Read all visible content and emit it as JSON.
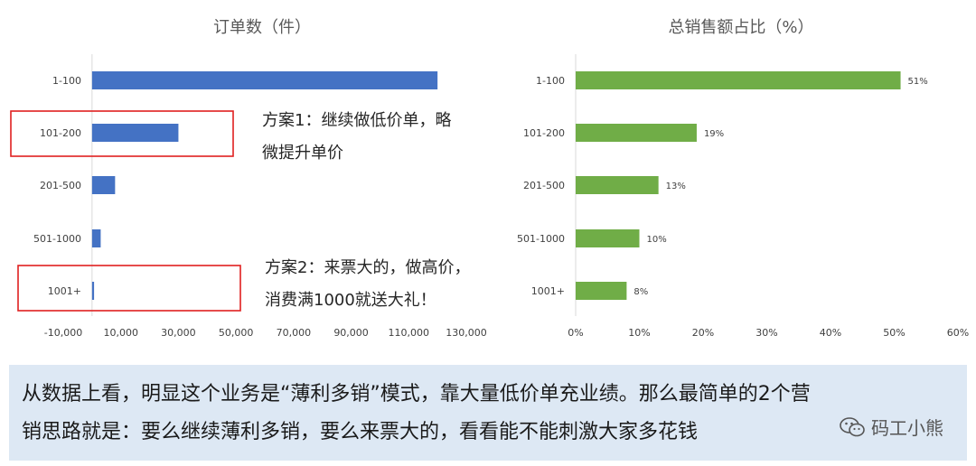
{
  "chart_data": [
    {
      "type": "bar",
      "orientation": "horizontal",
      "title": "订单数（件）",
      "categories": [
        "1-100",
        "101-200",
        "201-500",
        "501-1000",
        "1001+"
      ],
      "values": [
        120000,
        30000,
        8000,
        3000,
        700
      ],
      "xlim": [
        -10000,
        130000
      ],
      "xticks": [
        -10000,
        10000,
        30000,
        50000,
        70000,
        90000,
        110000,
        130000
      ],
      "xtick_labels": [
        "-10,000",
        "10,000",
        "30,000",
        "50,000",
        "70,000",
        "90,000",
        "110,000",
        "130,000"
      ],
      "color": "#4472c4",
      "grid": false
    },
    {
      "type": "bar",
      "orientation": "horizontal",
      "title": "总销售额占比（%）",
      "categories": [
        "1-100",
        "101-200",
        "201-500",
        "501-1000",
        "1001+"
      ],
      "values": [
        51,
        19,
        13,
        10,
        8
      ],
      "data_labels": [
        "51%",
        "19%",
        "13%",
        "10%",
        "8%"
      ],
      "xlim": [
        0,
        60
      ],
      "xticks": [
        0,
        10,
        20,
        30,
        40,
        50,
        60
      ],
      "xtick_labels": [
        "0%",
        "10%",
        "20%",
        "30%",
        "40%",
        "50%",
        "60%"
      ],
      "color": "#70ad47",
      "grid": false
    }
  ],
  "annotations": {
    "plan1": {
      "line1": "方案1：继续做低价单，略",
      "line2": "微提升单价",
      "box_color": "#e02020"
    },
    "plan2": {
      "line1": "方案2：来票大的，做高价，",
      "line2": "消费满1000就送大礼！",
      "box_color": "#e02020"
    }
  },
  "summary": {
    "line1": "从数据上看，明显这个业务是“薄利多销”模式，靠大量低价单充业绩。那么最简单的2个营",
    "line2": "销思路就是：要么继续薄利多销，要么来票大的，看看能不能刺激大家多花钱"
  },
  "watermark": {
    "text": "码工小熊",
    "icon": "wechat-icon"
  }
}
